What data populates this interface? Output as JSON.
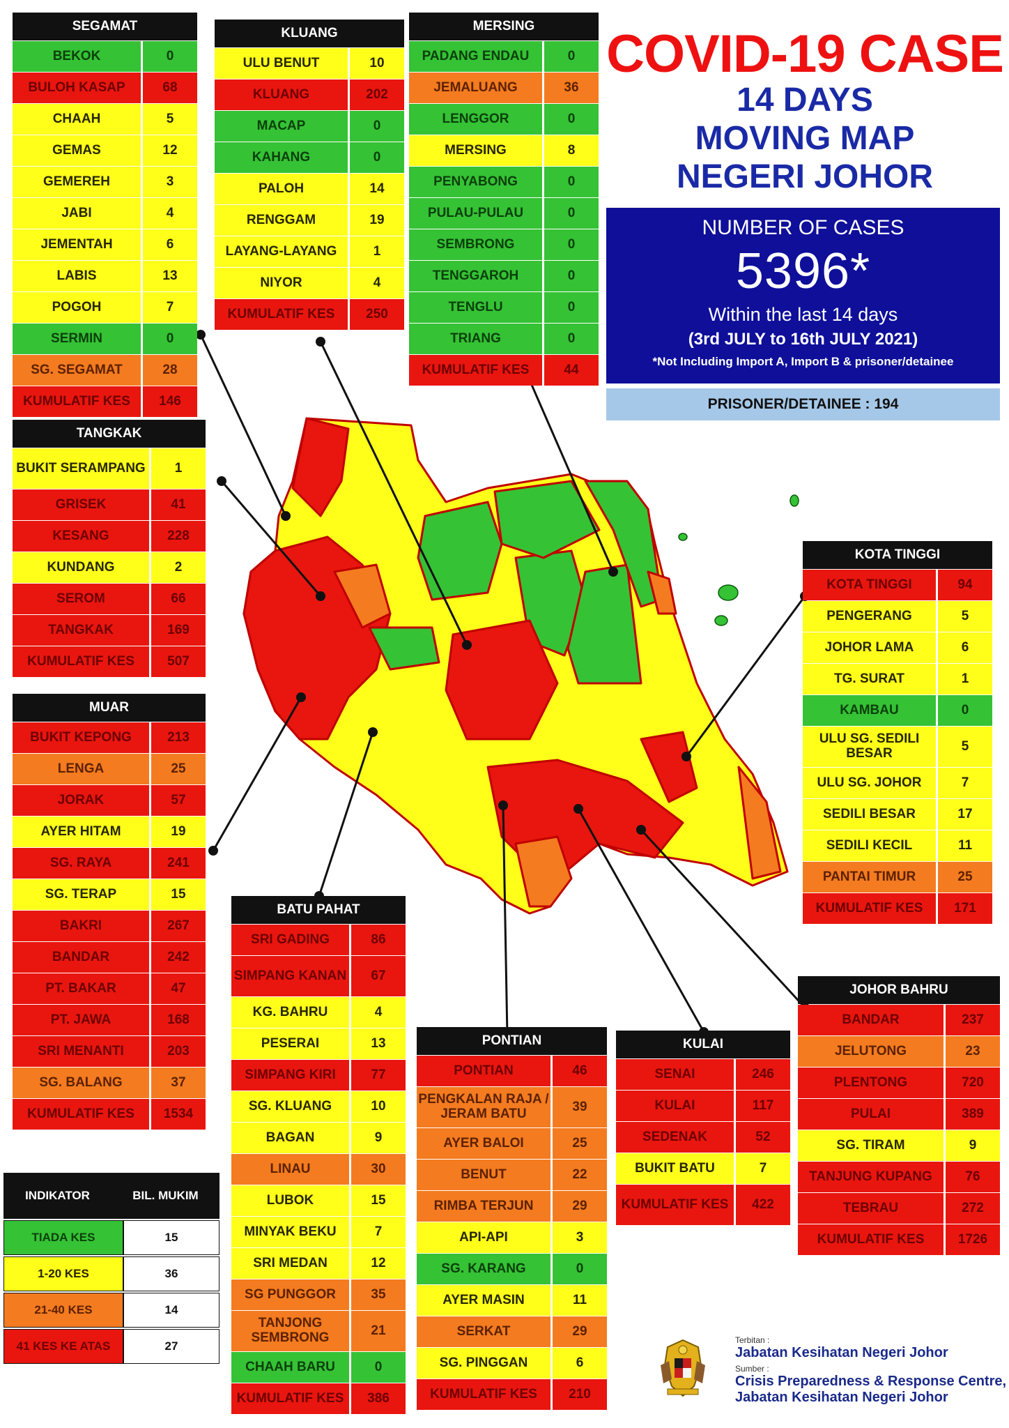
{
  "title": {
    "main": "COVID-19 CASE",
    "line2": "14 DAYS",
    "line3": "MOVING MAP",
    "line4": "NEGERI JOHOR"
  },
  "cases": {
    "label": "NUMBER OF CASES",
    "number": "5396*",
    "within": "Within the last 14 days",
    "range": "(3rd JULY to 16th JULY 2021)",
    "note": "*Not Including Import A, Import B & prisoner/detainee"
  },
  "prisoner": "PRISONER/DETAINEE : 194",
  "colors": {
    "red": "#e8160f",
    "yellow": "#ffff1a",
    "orange": "#f47b20",
    "green": "#35c235",
    "navy": "#0f0f9a"
  },
  "districts": {
    "segamat": {
      "name": "SEGAMAT",
      "rows": [
        {
          "n": "BEKOK",
          "v": "0",
          "c": "grn"
        },
        {
          "n": "BULOH KASAP",
          "v": "68",
          "c": "red"
        },
        {
          "n": "CHAAH",
          "v": "5",
          "c": "yel"
        },
        {
          "n": "GEMAS",
          "v": "12",
          "c": "yel"
        },
        {
          "n": "GEMEREH",
          "v": "3",
          "c": "yel"
        },
        {
          "n": "JABI",
          "v": "4",
          "c": "yel"
        },
        {
          "n": "JEMENTAH",
          "v": "6",
          "c": "yel"
        },
        {
          "n": "LABIS",
          "v": "13",
          "c": "yel"
        },
        {
          "n": "POGOH",
          "v": "7",
          "c": "yel"
        },
        {
          "n": "SERMIN",
          "v": "0",
          "c": "grn"
        },
        {
          "n": "SG. SEGAMAT",
          "v": "28",
          "c": "org"
        },
        {
          "n": "KUMULATIF KES",
          "v": "146",
          "c": "red"
        }
      ]
    },
    "kluang": {
      "name": "KLUANG",
      "rows": [
        {
          "n": "ULU BENUT",
          "v": "10",
          "c": "yel"
        },
        {
          "n": "KLUANG",
          "v": "202",
          "c": "red"
        },
        {
          "n": "MACAP",
          "v": "0",
          "c": "grn"
        },
        {
          "n": "KAHANG",
          "v": "0",
          "c": "grn"
        },
        {
          "n": "PALOH",
          "v": "14",
          "c": "yel"
        },
        {
          "n": "RENGGAM",
          "v": "19",
          "c": "yel"
        },
        {
          "n": "LAYANG-LAYANG",
          "v": "1",
          "c": "yel"
        },
        {
          "n": "NIYOR",
          "v": "4",
          "c": "yel"
        },
        {
          "n": "KUMULATIF KES",
          "v": "250",
          "c": "red"
        }
      ]
    },
    "mersing": {
      "name": "MERSING",
      "rows": [
        {
          "n": "PADANG ENDAU",
          "v": "0",
          "c": "grn"
        },
        {
          "n": "JEMALUANG",
          "v": "36",
          "c": "org"
        },
        {
          "n": "LENGGOR",
          "v": "0",
          "c": "grn"
        },
        {
          "n": "MERSING",
          "v": "8",
          "c": "yel"
        },
        {
          "n": "PENYABONG",
          "v": "0",
          "c": "grn"
        },
        {
          "n": "PULAU-PULAU",
          "v": "0",
          "c": "grn"
        },
        {
          "n": "SEMBRONG",
          "v": "0",
          "c": "grn"
        },
        {
          "n": "TENGGAROH",
          "v": "0",
          "c": "grn"
        },
        {
          "n": "TENGLU",
          "v": "0",
          "c": "grn"
        },
        {
          "n": "TRIANG",
          "v": "0",
          "c": "grn"
        },
        {
          "n": "KUMULATIF KES",
          "v": "44",
          "c": "red"
        }
      ]
    },
    "tangkak": {
      "name": "TANGKAK",
      "rows": [
        {
          "n": "BUKIT SERAMPANG",
          "v": "1",
          "c": "yel",
          "tall": true
        },
        {
          "n": "GRISEK",
          "v": "41",
          "c": "red"
        },
        {
          "n": "KESANG",
          "v": "228",
          "c": "red"
        },
        {
          "n": "KUNDANG",
          "v": "2",
          "c": "yel"
        },
        {
          "n": "SEROM",
          "v": "66",
          "c": "red"
        },
        {
          "n": "TANGKAK",
          "v": "169",
          "c": "red"
        },
        {
          "n": "KUMULATIF KES",
          "v": "507",
          "c": "red"
        }
      ]
    },
    "muar": {
      "name": "MUAR",
      "rows": [
        {
          "n": "BUKIT KEPONG",
          "v": "213",
          "c": "red"
        },
        {
          "n": "LENGA",
          "v": "25",
          "c": "org"
        },
        {
          "n": "JORAK",
          "v": "57",
          "c": "red"
        },
        {
          "n": "AYER HITAM",
          "v": "19",
          "c": "yel"
        },
        {
          "n": "SG. RAYA",
          "v": "241",
          "c": "red"
        },
        {
          "n": "SG. TERAP",
          "v": "15",
          "c": "yel"
        },
        {
          "n": "BAKRI",
          "v": "267",
          "c": "red"
        },
        {
          "n": "BANDAR",
          "v": "242",
          "c": "red"
        },
        {
          "n": "PT. BAKAR",
          "v": "47",
          "c": "red"
        },
        {
          "n": "PT. JAWA",
          "v": "168",
          "c": "red"
        },
        {
          "n": "SRI MENANTI",
          "v": "203",
          "c": "red"
        },
        {
          "n": "SG. BALANG",
          "v": "37",
          "c": "org"
        },
        {
          "n": "KUMULATIF KES",
          "v": "1534",
          "c": "red"
        }
      ]
    },
    "kotatinggi": {
      "name": "KOTA TINGGI",
      "rows": [
        {
          "n": "KOTA TINGGI",
          "v": "94",
          "c": "red"
        },
        {
          "n": "PENGERANG",
          "v": "5",
          "c": "yel"
        },
        {
          "n": "JOHOR LAMA",
          "v": "6",
          "c": "yel"
        },
        {
          "n": "TG. SURAT",
          "v": "1",
          "c": "yel"
        },
        {
          "n": "KAMBAU",
          "v": "0",
          "c": "grn"
        },
        {
          "n": "ULU SG. SEDILI BESAR",
          "v": "5",
          "c": "yel",
          "tall": true
        },
        {
          "n": "ULU  SG. JOHOR",
          "v": "7",
          "c": "yel"
        },
        {
          "n": "SEDILI BESAR",
          "v": "17",
          "c": "yel"
        },
        {
          "n": "SEDILI KECIL",
          "v": "11",
          "c": "yel"
        },
        {
          "n": "PANTAI TIMUR",
          "v": "25",
          "c": "org"
        },
        {
          "n": "KUMULATIF KES",
          "v": "171",
          "c": "red"
        }
      ]
    },
    "batupahat": {
      "name": "BATU PAHAT",
      "rows": [
        {
          "n": "SRI GADING",
          "v": "86",
          "c": "red"
        },
        {
          "n": "SIMPANG KANAN",
          "v": "67",
          "c": "red",
          "tall": true
        },
        {
          "n": "KG. BAHRU",
          "v": "4",
          "c": "yel"
        },
        {
          "n": "PESERAI",
          "v": "13",
          "c": "yel"
        },
        {
          "n": "SIMPANG KIRI",
          "v": "77",
          "c": "red"
        },
        {
          "n": "SG. KLUANG",
          "v": "10",
          "c": "yel"
        },
        {
          "n": "BAGAN",
          "v": "9",
          "c": "yel"
        },
        {
          "n": "LINAU",
          "v": "30",
          "c": "org"
        },
        {
          "n": "LUBOK",
          "v": "15",
          "c": "yel"
        },
        {
          "n": "MINYAK BEKU",
          "v": "7",
          "c": "yel"
        },
        {
          "n": "SRI MEDAN",
          "v": "12",
          "c": "yel"
        },
        {
          "n": "SG PUNGGOR",
          "v": "35",
          "c": "org"
        },
        {
          "n": "TANJONG SEMBRONG",
          "v": "21",
          "c": "org",
          "tall": true
        },
        {
          "n": "CHAAH BARU",
          "v": "0",
          "c": "grn"
        },
        {
          "n": "KUMULATIF KES",
          "v": "386",
          "c": "red"
        }
      ]
    },
    "pontian": {
      "name": "PONTIAN",
      "rows": [
        {
          "n": "PONTIAN",
          "v": "46",
          "c": "red"
        },
        {
          "n": "PENGKALAN RAJA / JERAM BATU",
          "v": "39",
          "c": "org",
          "tall": true
        },
        {
          "n": "AYER BALOI",
          "v": "25",
          "c": "org"
        },
        {
          "n": "BENUT",
          "v": "22",
          "c": "org"
        },
        {
          "n": "RIMBA TERJUN",
          "v": "29",
          "c": "org"
        },
        {
          "n": "API-API",
          "v": "3",
          "c": "yel"
        },
        {
          "n": "SG. KARANG",
          "v": "0",
          "c": "grn"
        },
        {
          "n": "AYER MASIN",
          "v": "11",
          "c": "yel"
        },
        {
          "n": "SERKAT",
          "v": "29",
          "c": "org"
        },
        {
          "n": "SG. PINGGAN",
          "v": "6",
          "c": "yel"
        },
        {
          "n": "KUMULATIF KES",
          "v": "210",
          "c": "red"
        }
      ]
    },
    "kulai": {
      "name": "KULAI",
      "rows": [
        {
          "n": "SENAI",
          "v": "246",
          "c": "red"
        },
        {
          "n": "KULAI",
          "v": "117",
          "c": "red"
        },
        {
          "n": "SEDENAK",
          "v": "52",
          "c": "red"
        },
        {
          "n": "BUKIT BATU",
          "v": "7",
          "c": "yel"
        },
        {
          "n": "KUMULATIF KES",
          "v": "422",
          "c": "red",
          "tall": true
        }
      ]
    },
    "johorbahru": {
      "name": "JOHOR BAHRU",
      "rows": [
        {
          "n": "BANDAR",
          "v": "237",
          "c": "red"
        },
        {
          "n": "JELUTONG",
          "v": "23",
          "c": "org"
        },
        {
          "n": "PLENTONG",
          "v": "720",
          "c": "red"
        },
        {
          "n": "PULAI",
          "v": "389",
          "c": "red"
        },
        {
          "n": "SG. TIRAM",
          "v": "9",
          "c": "yel"
        },
        {
          "n": "TANJUNG KUPANG",
          "v": "76",
          "c": "red"
        },
        {
          "n": "TEBRAU",
          "v": "272",
          "c": "red"
        },
        {
          "n": "KUMULATIF KES",
          "v": "1726",
          "c": "red"
        }
      ]
    }
  },
  "legend": {
    "header_left": "INDIKATOR",
    "header_right": "BIL. MUKIM",
    "rows": [
      {
        "label": "TIADA KES",
        "count": "15",
        "c": "grn"
      },
      {
        "label": "1-20 KES",
        "count": "36",
        "c": "yel"
      },
      {
        "label": "21-40 KES",
        "count": "14",
        "c": "org"
      },
      {
        "label": "41 KES KE ATAS",
        "count": "27",
        "c": "red"
      }
    ]
  },
  "credits": {
    "terbitan_label": "Terbitan :",
    "terbitan": "Jabatan Kesihatan Negeri Johor",
    "sumber_label": "Sumber :",
    "sumber1": "Crisis Preparedness & Response Centre,",
    "sumber2": "Jabatan Kesihatan Negeri Johor"
  }
}
